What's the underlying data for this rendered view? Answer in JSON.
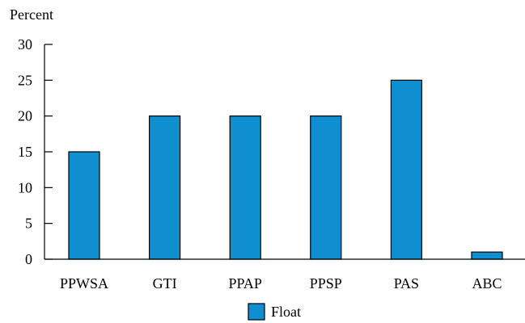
{
  "chart_data": {
    "type": "bar",
    "title": "",
    "xlabel": "",
    "ylabel": "Percent",
    "categories": [
      "PPWSA",
      "GTI",
      "PPAP",
      "PPSP",
      "PAS",
      "ABC"
    ],
    "series": [
      {
        "name": "Float",
        "values": [
          15,
          20,
          20,
          20,
          25,
          1
        ]
      }
    ],
    "ylim": [
      0,
      30
    ],
    "yticks": [
      0,
      5,
      10,
      15,
      20,
      25,
      30
    ],
    "grid": false,
    "legend": "bottom-center",
    "colors": {
      "bar_fill": "#0f8fd0",
      "bar_stroke": "#000000",
      "axis": "#000000"
    }
  }
}
